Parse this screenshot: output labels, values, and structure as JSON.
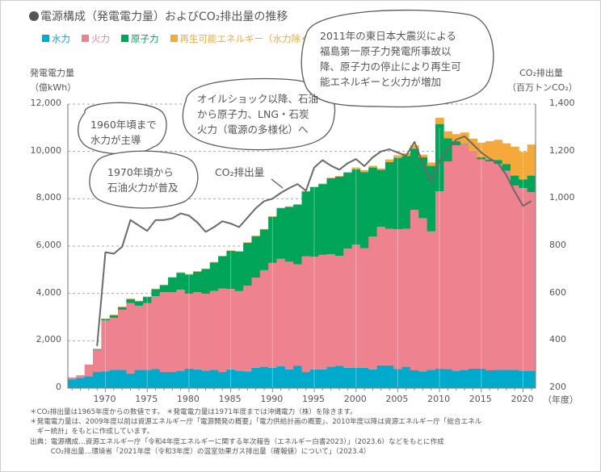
{
  "title": "電源構成（発電電力量）およびCO₂排出量の推移",
  "legend": [
    {
      "label": "水力",
      "color": "#00aacb"
    },
    {
      "label": "火力",
      "color": "#ee828e"
    },
    {
      "label": "原子力",
      "color": "#00a55a"
    },
    {
      "label": "再生可能エネルギー（水力除く）",
      "color": "#f4a93a"
    }
  ],
  "annotations": {
    "hydro_era": [
      "1960年頃まで",
      "水力が主導"
    ],
    "oil_era": [
      "1970年頃から",
      "石油火力が普及"
    ],
    "diversification": [
      "オイルショック以降、石油",
      "から原子力、LNG・石炭",
      "火力（電源の多様化）へ"
    ],
    "earthquake": [
      "2011年の東日本大震災による",
      "福島第一原子力発電所事故以",
      "降、原子力の停止により再生可",
      "能エネルギーと火力が増加"
    ],
    "co2_line_label": "CO₂排出量"
  },
  "notes": [
    "＊CO₂排出量は1965年度からの数値です。 ＊発電電力量は1971年度までは沖縄電力（株）を除きます。",
    "＊発電電力量は、2009年度以前は資源エネルギー庁「電源開発の概要」「電力供給計画の概要」、2010年度以降は資源エネルギー庁「総合エネル",
    "　ギー統計」をもとに作成しています。",
    "出典：電源構成…資源エネルギー庁「令和4年度エネルギーに関する年次報告（エネルギー白書2023）」（2023.6）などをもとに作成",
    "　　　CO₂排出量…環境省「2021年度（令和3年度）の温室効果ガス排出量（確報値）について」（2023.4）"
  ],
  "chart_data": {
    "type": "bar",
    "stacked": true,
    "xlabel": "（年度）",
    "ylabel": [
      "発電電力量",
      "（億kWh）"
    ],
    "y2label": [
      "CO₂排出量",
      "（百万トンCO₂）"
    ],
    "ylim": [
      0,
      12000
    ],
    "y2lim": [
      200,
      1400
    ],
    "yticks": [
      "0",
      "2,000",
      "4,000",
      "6,000",
      "8,000",
      "10,000",
      "12,000"
    ],
    "y2ticks": [
      "200",
      "400",
      "600",
      "800",
      "1,000",
      "1,200",
      "1,400"
    ],
    "xticks": [
      "1970",
      "1975",
      "1980",
      "1985",
      "1990",
      "1995",
      "2000",
      "2005",
      "2010",
      "2015",
      "2020"
    ],
    "grid": "horizontal dashed",
    "categories": [
      1966,
      1967,
      1968,
      1969,
      1970,
      1971,
      1972,
      1973,
      1974,
      1975,
      1976,
      1977,
      1978,
      1979,
      1980,
      1981,
      1982,
      1983,
      1984,
      1985,
      1986,
      1987,
      1988,
      1989,
      1990,
      1991,
      1992,
      1993,
      1994,
      1995,
      1996,
      1997,
      1998,
      1999,
      2000,
      2001,
      2002,
      2003,
      2004,
      2005,
      2006,
      2007,
      2008,
      2009,
      2010,
      2011,
      2012,
      2013,
      2014,
      2015,
      2016,
      2017,
      2018,
      2019,
      2020,
      2021
    ],
    "series": [
      {
        "name": "水力",
        "values": [
          370,
          430,
          500,
          680,
          710,
          770,
          770,
          620,
          770,
          770,
          800,
          680,
          680,
          730,
          820,
          790,
          740,
          770,
          680,
          790,
          730,
          710,
          860,
          900,
          860,
          920,
          790,
          950,
          680,
          790,
          790,
          900,
          940,
          860,
          860,
          860,
          790,
          960,
          960,
          800,
          900,
          750,
          710,
          770,
          820,
          800,
          730,
          770,
          820,
          820,
          750,
          770,
          770,
          770,
          730,
          730
        ]
      },
      {
        "name": "火力",
        "values": [
          80,
          110,
          490,
          940,
          2150,
          2200,
          2540,
          2970,
          2710,
          2820,
          3080,
          3370,
          3370,
          3430,
          3170,
          3260,
          3250,
          3330,
          3530,
          3400,
          3370,
          3620,
          3810,
          4080,
          4430,
          4540,
          4550,
          4280,
          4890,
          4760,
          4840,
          4760,
          4650,
          5030,
          5200,
          5050,
          5610,
          5850,
          5770,
          5910,
          5830,
          6780,
          6470,
          5850,
          7490,
          8780,
          9530,
          9550,
          9210,
          8840,
          8830,
          8700,
          8420,
          7790,
          7720,
          7550
        ]
      },
      {
        "name": "原子力",
        "values": [
          0,
          0,
          0,
          30,
          60,
          110,
          110,
          170,
          190,
          260,
          300,
          300,
          620,
          710,
          810,
          870,
          1040,
          1210,
          1360,
          1610,
          1670,
          1810,
          1750,
          1720,
          1950,
          2140,
          2320,
          2520,
          2740,
          2940,
          2990,
          3210,
          3350,
          3210,
          3180,
          3220,
          2920,
          2410,
          2820,
          3020,
          3080,
          2590,
          2570,
          2770,
          2850,
          980,
          170,
          20,
          0,
          90,
          80,
          170,
          280,
          420,
          370,
          700
        ]
      },
      {
        "name": "再生可能エネルギー（水力除く）",
        "values": [
          0,
          0,
          0,
          0,
          20,
          20,
          20,
          20,
          20,
          20,
          20,
          20,
          20,
          20,
          20,
          20,
          20,
          20,
          20,
          20,
          20,
          20,
          20,
          20,
          20,
          20,
          20,
          20,
          20,
          20,
          20,
          20,
          20,
          30,
          80,
          80,
          70,
          60,
          110,
          110,
          110,
          140,
          110,
          140,
          260,
          290,
          300,
          460,
          510,
          620,
          770,
          850,
          870,
          1220,
          1160,
          1310
        ]
      }
    ],
    "line": {
      "name": "CO₂排出量",
      "axis": "right",
      "color": "#666666",
      "values": [
        null,
        null,
        null,
        378,
        774,
        768,
        797,
        910,
        887,
        864,
        910,
        910,
        917,
        938,
        929,
        900,
        860,
        880,
        905,
        895,
        880,
        920,
        960,
        990,
        1000,
        1025,
        1045,
        1062,
        1034,
        1132,
        1163,
        1140,
        1123,
        1150,
        1168,
        1138,
        1175,
        1200,
        1209,
        1195,
        1181,
        1240,
        1150,
        1070,
        1160,
        1210,
        1250,
        1264,
        1230,
        1195,
        1170,
        1150,
        1100,
        1030,
        970,
        990
      ]
    }
  }
}
